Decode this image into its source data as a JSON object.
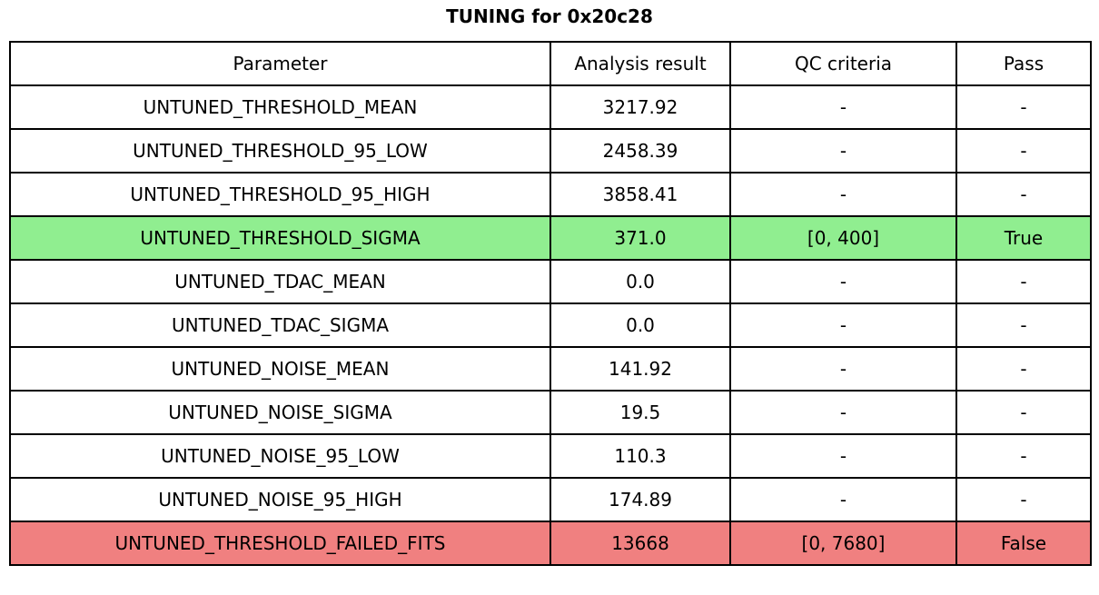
{
  "title": "TUNING for 0x20c28",
  "chart_data": {
    "type": "table",
    "title": "TUNING for 0x20c28",
    "columns": [
      "Parameter",
      "Analysis result",
      "QC criteria",
      "Pass"
    ],
    "rows": [
      {
        "parameter": "UNTUNED_THRESHOLD_MEAN",
        "analysis_result": "3217.92",
        "qc_criteria": "-",
        "pass": "-",
        "highlight": "none"
      },
      {
        "parameter": "UNTUNED_THRESHOLD_95_LOW",
        "analysis_result": "2458.39",
        "qc_criteria": "-",
        "pass": "-",
        "highlight": "none"
      },
      {
        "parameter": "UNTUNED_THRESHOLD_95_HIGH",
        "analysis_result": "3858.41",
        "qc_criteria": "-",
        "pass": "-",
        "highlight": "none"
      },
      {
        "parameter": "UNTUNED_THRESHOLD_SIGMA",
        "analysis_result": "371.0",
        "qc_criteria": "[0, 400]",
        "pass": "True",
        "highlight": "pass"
      },
      {
        "parameter": "UNTUNED_TDAC_MEAN",
        "analysis_result": "0.0",
        "qc_criteria": "-",
        "pass": "-",
        "highlight": "none"
      },
      {
        "parameter": "UNTUNED_TDAC_SIGMA",
        "analysis_result": "0.0",
        "qc_criteria": "-",
        "pass": "-",
        "highlight": "none"
      },
      {
        "parameter": "UNTUNED_NOISE_MEAN",
        "analysis_result": "141.92",
        "qc_criteria": "-",
        "pass": "-",
        "highlight": "none"
      },
      {
        "parameter": "UNTUNED_NOISE_SIGMA",
        "analysis_result": "19.5",
        "qc_criteria": "-",
        "pass": "-",
        "highlight": "none"
      },
      {
        "parameter": "UNTUNED_NOISE_95_LOW",
        "analysis_result": "110.3",
        "qc_criteria": "-",
        "pass": "-",
        "highlight": "none"
      },
      {
        "parameter": "UNTUNED_NOISE_95_HIGH",
        "analysis_result": "174.89",
        "qc_criteria": "-",
        "pass": "-",
        "highlight": "none"
      },
      {
        "parameter": "UNTUNED_THRESHOLD_FAILED_FITS",
        "analysis_result": "13668",
        "qc_criteria": "[0, 7680]",
        "pass": "False",
        "highlight": "fail"
      }
    ],
    "colors": {
      "pass_row": "#90ee90",
      "fail_row": "#f08080",
      "row_default": "#ffffff",
      "border": "#000000",
      "text": "#000000"
    },
    "layout": {
      "grid": "full-borders",
      "header_position": "top"
    }
  }
}
